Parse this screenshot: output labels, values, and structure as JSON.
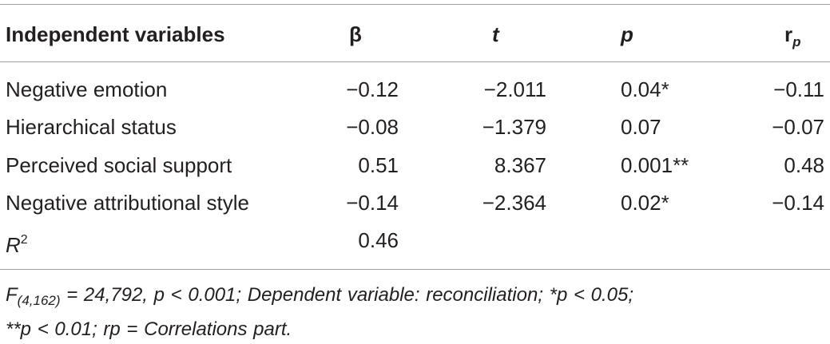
{
  "table": {
    "headers": {
      "variables": "Independent variables",
      "beta": "β",
      "t": "t",
      "p": "p",
      "rp_main": "r",
      "rp_sub": "p"
    },
    "rows": [
      {
        "label": "Negative emotion",
        "beta": "−0.12",
        "t": "−2.011",
        "p": "0.04*",
        "rp": "−0.11"
      },
      {
        "label": "Hierarchical status",
        "beta": "−0.08",
        "t": "−1.379",
        "p": "0.07",
        "rp": "−0.07"
      },
      {
        "label": "Perceived social support",
        "beta": "0.51",
        "t": "8.367",
        "p": "0.001**",
        "rp": "0.48"
      },
      {
        "label": "Negative attributional style",
        "beta": "−0.14",
        "t": "−2.364",
        "p": "0.02*",
        "rp": "−0.14"
      }
    ],
    "r2": {
      "label": "R",
      "sup": "2",
      "beta": "0.46"
    },
    "note": {
      "f_label": "F",
      "f_sub": "(4,162)",
      "line1_rest": " = 24,792, p < 0.001; Dependent variable: reconciliation; *p < 0.05;",
      "line2": "**p < 0.01; rp = Correlations part."
    }
  }
}
